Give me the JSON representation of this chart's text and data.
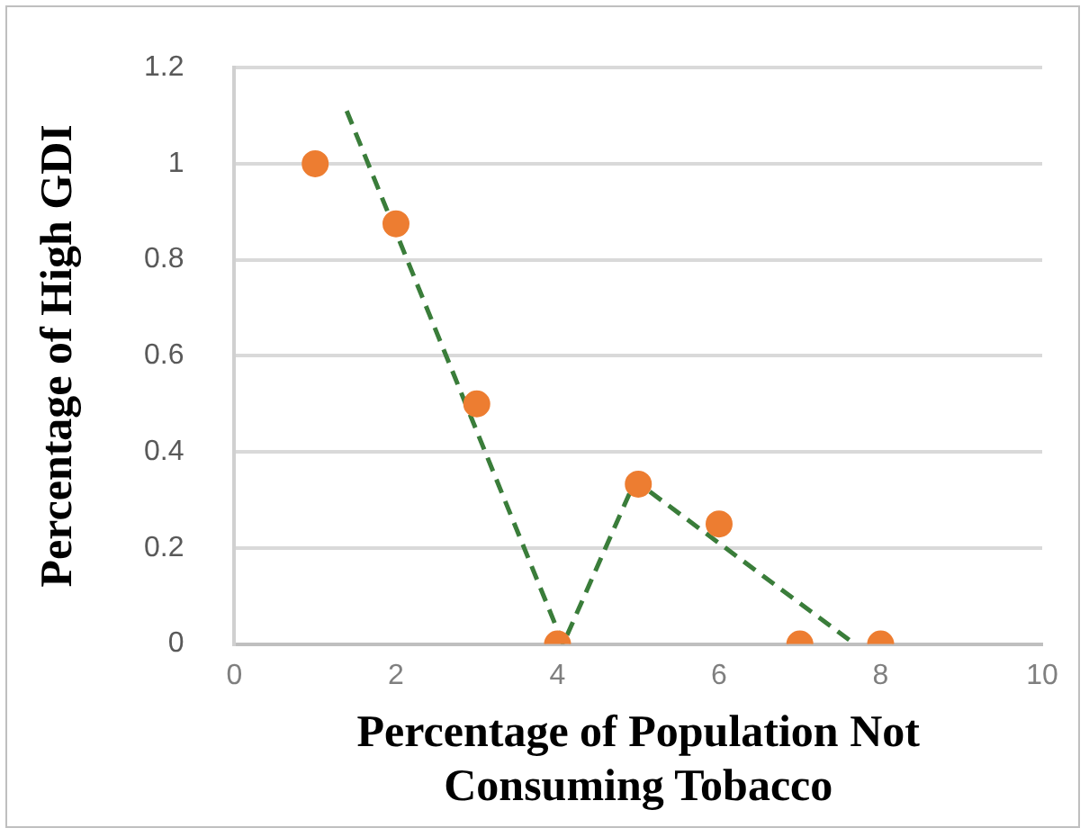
{
  "chart_data": {
    "type": "scatter",
    "xlabel": "Percentage of Population Not Consuming Tobacco",
    "ylabel": "Percentage of High GDI",
    "xlim": [
      0,
      10
    ],
    "xticks": [
      0,
      2,
      4,
      6,
      8,
      10
    ],
    "ylim": [
      0,
      1.2
    ],
    "yticks": [
      0,
      0.2,
      0.4,
      0.6,
      0.8,
      1,
      1.2
    ],
    "grid": "y",
    "legend": false,
    "marker": "circle",
    "series": [
      {
        "type": "scatter",
        "color": "#ed7d31",
        "x": [
          1,
          2,
          3,
          4,
          5,
          6,
          7,
          8
        ],
        "values": [
          1,
          0.875,
          0.5,
          0,
          0.333,
          0.25,
          0,
          0
        ]
      },
      {
        "type": "line",
        "color": "#3a7d3a",
        "line_style": "dashed",
        "marker": "none",
        "x": [
          1.39,
          4.07,
          4.96,
          7.68
        ],
        "values": [
          1.11,
          0,
          0.34,
          0
        ]
      }
    ]
  }
}
